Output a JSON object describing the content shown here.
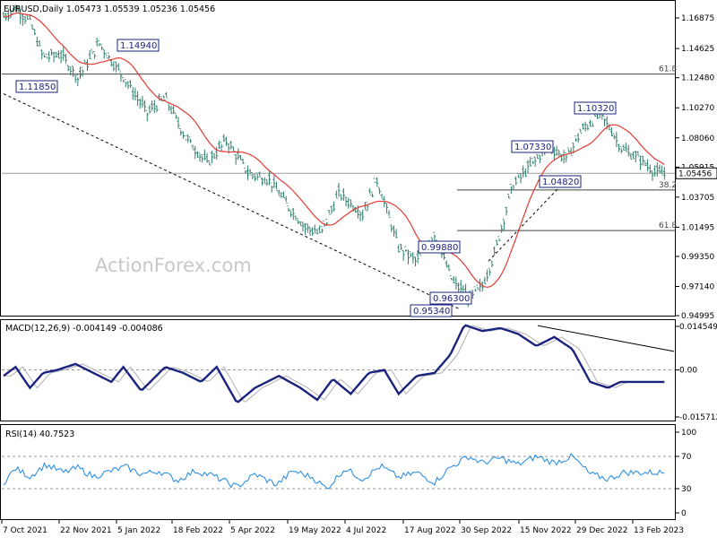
{
  "chart_data": {
    "type": "candlestick",
    "header": "EURUSD,Daily  1.05473 1.05539 1.05236 1.05456",
    "watermark": "ActionForex.com",
    "current_price": "1.05456",
    "y_ticks": [
      "1.16875",
      "1.14625",
      "1.12480",
      "1.10270",
      "1.08060",
      "1.05915",
      "1.03705",
      "1.01495",
      "0.99350",
      "0.97140",
      "0.94995"
    ],
    "x_ticks": [
      "7 Oct 2021",
      "22 Nov 2021",
      "5 Jan 2022",
      "18 Feb 2022",
      "5 Apr 2022",
      "19 May 2022",
      "4 Jul 2022",
      "17 Aug 2022",
      "30 Sep 2022",
      "15 Nov 2022",
      "29 Dec 2022",
      "13 Feb 2023"
    ],
    "price_labels": [
      {
        "text": "1.14940",
        "value": 1.1494
      },
      {
        "text": "1.11850",
        "value": 1.1185
      },
      {
        "text": "1.10320",
        "value": 1.1032
      },
      {
        "text": "1.07330",
        "value": 1.0733
      },
      {
        "text": "1.04820",
        "value": 1.0482
      },
      {
        "text": "0.99880",
        "value": 0.9988
      },
      {
        "text": "0.96300",
        "value": 0.963
      },
      {
        "text": "0.95340",
        "value": 0.9534
      }
    ],
    "fib_levels": [
      {
        "label": "61.8",
        "value": 1.1275
      },
      {
        "label": "38.2",
        "value": 1.0423
      },
      {
        "label": "61.8",
        "value": 1.0125
      }
    ],
    "price_path": [
      [
        0,
        1.17
      ],
      [
        10,
        1.176
      ],
      [
        22,
        1.166
      ],
      [
        33,
        1.14
      ],
      [
        48,
        1.142
      ],
      [
        62,
        1.125
      ],
      [
        80,
        1.15
      ],
      [
        98,
        1.128
      ],
      [
        120,
        1.099
      ],
      [
        135,
        1.11
      ],
      [
        152,
        1.081
      ],
      [
        170,
        1.062
      ],
      [
        186,
        1.079
      ],
      [
        205,
        1.054
      ],
      [
        222,
        1.05
      ],
      [
        238,
        1.03
      ],
      [
        252,
        1.015
      ],
      [
        265,
        1.01
      ],
      [
        280,
        1.04
      ],
      [
        300,
        1.025
      ],
      [
        312,
        1.05
      ],
      [
        330,
        1.0
      ],
      [
        345,
        0.99
      ],
      [
        360,
        1.01
      ],
      [
        375,
        0.975
      ],
      [
        390,
        0.963
      ],
      [
        400,
        0.972
      ],
      [
        410,
        0.995
      ],
      [
        425,
        1.045
      ],
      [
        440,
        1.06
      ],
      [
        455,
        1.075
      ],
      [
        470,
        1.065
      ],
      [
        482,
        1.085
      ],
      [
        498,
        1.098
      ],
      [
        505,
        1.09
      ],
      [
        517,
        1.072
      ],
      [
        530,
        1.066
      ],
      [
        545,
        1.055
      ],
      [
        552,
        1.054
      ]
    ],
    "macd": {
      "header": "MACD(12,26,9) -0.004149 -0.004086",
      "ticks": [
        "0.014549",
        "0.00",
        "-0.015712"
      ],
      "ylim": [
        -0.015712,
        0.014549
      ],
      "path": [
        [
          0,
          -0.002
        ],
        [
          10,
          0.001
        ],
        [
          22,
          -0.006
        ],
        [
          33,
          -0.001
        ],
        [
          45,
          0.0
        ],
        [
          60,
          0.002
        ],
        [
          75,
          -0.001
        ],
        [
          90,
          -0.004
        ],
        [
          100,
          0.001
        ],
        [
          115,
          -0.007
        ],
        [
          135,
          0.001
        ],
        [
          150,
          -0.001
        ],
        [
          165,
          -0.004
        ],
        [
          178,
          0.001
        ],
        [
          195,
          -0.011
        ],
        [
          210,
          -0.006
        ],
        [
          230,
          -0.002
        ],
        [
          248,
          -0.006
        ],
        [
          262,
          -0.01
        ],
        [
          275,
          -0.003
        ],
        [
          290,
          -0.008
        ],
        [
          305,
          -0.001
        ],
        [
          318,
          0.0
        ],
        [
          330,
          -0.008
        ],
        [
          345,
          -0.002
        ],
        [
          360,
          -0.001
        ],
        [
          373,
          0.005
        ],
        [
          385,
          0.015
        ],
        [
          400,
          0.013
        ],
        [
          415,
          0.014
        ],
        [
          430,
          0.012
        ],
        [
          445,
          0.008
        ],
        [
          460,
          0.011
        ],
        [
          475,
          0.007
        ],
        [
          490,
          -0.004
        ],
        [
          505,
          -0.006
        ],
        [
          515,
          -0.004
        ]
      ]
    },
    "rsi": {
      "header": "RSI(14) 40.7523",
      "ticks": [
        "100",
        "70",
        "30",
        "0"
      ],
      "ylim": [
        0,
        100
      ],
      "path": [
        [
          0,
          38
        ],
        [
          10,
          55
        ],
        [
          22,
          45
        ],
        [
          35,
          60
        ],
        [
          50,
          50
        ],
        [
          62,
          56
        ],
        [
          75,
          45
        ],
        [
          90,
          52
        ],
        [
          102,
          57
        ],
        [
          115,
          48
        ],
        [
          130,
          52
        ],
        [
          145,
          40
        ],
        [
          160,
          52
        ],
        [
          175,
          46
        ],
        [
          195,
          32
        ],
        [
          210,
          48
        ],
        [
          228,
          35
        ],
        [
          242,
          52
        ],
        [
          258,
          44
        ],
        [
          270,
          30
        ],
        [
          285,
          55
        ],
        [
          300,
          42
        ],
        [
          315,
          58
        ],
        [
          330,
          44
        ],
        [
          345,
          50
        ],
        [
          360,
          38
        ],
        [
          372,
          55
        ],
        [
          388,
          70
        ],
        [
          400,
          62
        ],
        [
          415,
          68
        ],
        [
          430,
          60
        ],
        [
          445,
          70
        ],
        [
          460,
          62
        ],
        [
          475,
          70
        ],
        [
          490,
          48
        ],
        [
          505,
          42
        ],
        [
          518,
          50
        ]
      ]
    }
  }
}
